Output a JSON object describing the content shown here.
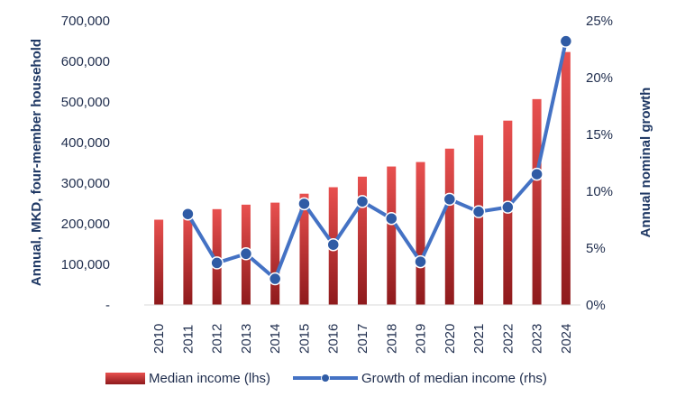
{
  "chart_data": {
    "type": "bar",
    "categories": [
      "2010",
      "2011",
      "2012",
      "2013",
      "2014",
      "2015",
      "2016",
      "2017",
      "2018",
      "2019",
      "2020",
      "2021",
      "2022",
      "2023",
      "2024"
    ],
    "series": [
      {
        "name": "Median income (lhs)",
        "type": "bar",
        "axis": "left",
        "values": [
          210000,
          227000,
          236000,
          247000,
          252000,
          274000,
          290000,
          316000,
          341000,
          352000,
          385000,
          418000,
          454000,
          507000,
          623000
        ]
      },
      {
        "name": "Growth of median income (rhs)",
        "type": "line",
        "axis": "right",
        "values": [
          null,
          0.08,
          0.037,
          0.045,
          0.023,
          0.089,
          0.053,
          0.091,
          0.076,
          0.038,
          0.093,
          0.082,
          0.086,
          0.115,
          0.232
        ]
      }
    ],
    "ylabel": "Annual, MKD, four-member household",
    "y2label": "Annual nominal growth",
    "ylim": [
      0,
      700000
    ],
    "y2lim": [
      0,
      0.25
    ],
    "yticks": [
      "-",
      "100,000",
      "200,000",
      "300,000",
      "400,000",
      "500,000",
      "600,000",
      "700,000"
    ],
    "y2ticks": [
      "0%",
      "5%",
      "10%",
      "15%",
      "20%",
      "25%"
    ],
    "grid": false,
    "legend_position": "bottom",
    "colors": {
      "bar_top": "#e8504f",
      "bar_bottom": "#8e1a1c",
      "line": "#4472c4",
      "marker": "#2f5ba5",
      "text": "#1f3864"
    }
  },
  "legend": {
    "bar_label": "Median income (lhs)",
    "line_label": "Growth of median income (rhs)"
  }
}
